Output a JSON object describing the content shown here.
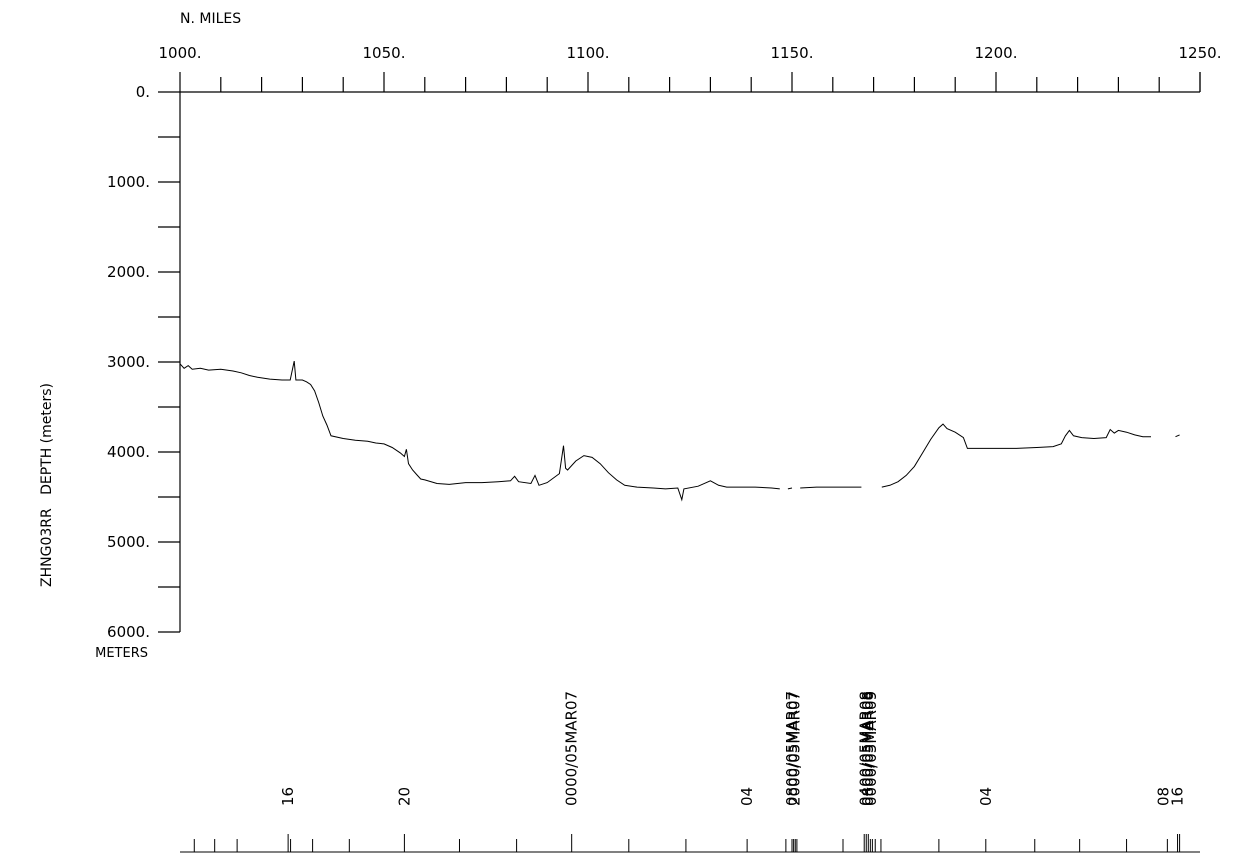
{
  "chart_data": {
    "type": "line",
    "xlabel": "N. MILES",
    "ylabel": "ZHNG03RR   DEPTH (meters)",
    "y_unit_label": "METERS",
    "xlim": [
      1000,
      1250
    ],
    "ylim": [
      0,
      6000
    ],
    "y_inverted": true,
    "grid": false,
    "x_tick_labels": [
      "1000.",
      "1050.",
      "1100.",
      "1150.",
      "1200.",
      "1250."
    ],
    "y_tick_labels": [
      "0.",
      "1000.",
      "2000.",
      "3000.",
      "4000.",
      "5000.",
      "6000."
    ],
    "series": [
      {
        "segments": [
          [
            [
              1000,
              3020
            ],
            [
              1001,
              3070
            ],
            [
              1002,
              3040
            ],
            [
              1003,
              3080
            ],
            [
              1005,
              3070
            ],
            [
              1007,
              3090
            ],
            [
              1010,
              3080
            ],
            [
              1013,
              3100
            ],
            [
              1015,
              3120
            ],
            [
              1017,
              3150
            ],
            [
              1019,
              3170
            ],
            [
              1022,
              3190
            ],
            [
              1025,
              3200
            ],
            [
              1027,
              3200
            ],
            [
              1028,
              2990
            ],
            [
              1028.4,
              3200
            ],
            [
              1030,
              3200
            ],
            [
              1031,
              3220
            ],
            [
              1032,
              3250
            ],
            [
              1033,
              3320
            ],
            [
              1034,
              3450
            ],
            [
              1035,
              3600
            ],
            [
              1036,
              3700
            ],
            [
              1037,
              3820
            ],
            [
              1040,
              3850
            ],
            [
              1043,
              3870
            ],
            [
              1046,
              3880
            ],
            [
              1048,
              3900
            ],
            [
              1050,
              3910
            ],
            [
              1052,
              3950
            ],
            [
              1054,
              4010
            ],
            [
              1055,
              4050
            ],
            [
              1055.5,
              3970
            ],
            [
              1056,
              4130
            ],
            [
              1057,
              4200
            ],
            [
              1058,
              4250
            ],
            [
              1059,
              4300
            ],
            [
              1060,
              4310
            ],
            [
              1063,
              4350
            ],
            [
              1066,
              4360
            ],
            [
              1070,
              4340
            ],
            [
              1074,
              4340
            ],
            [
              1078,
              4330
            ],
            [
              1081,
              4320
            ],
            [
              1082,
              4270
            ],
            [
              1083,
              4330
            ],
            [
              1086,
              4350
            ],
            [
              1087,
              4260
            ],
            [
              1088,
              4370
            ],
            [
              1090,
              4340
            ],
            [
              1093,
              4240
            ],
            [
              1094,
              3930
            ],
            [
              1094.5,
              4180
            ],
            [
              1095,
              4200
            ],
            [
              1097,
              4100
            ],
            [
              1099,
              4040
            ],
            [
              1101,
              4060
            ],
            [
              1103,
              4130
            ],
            [
              1105,
              4230
            ],
            [
              1107,
              4310
            ],
            [
              1109,
              4370
            ],
            [
              1112,
              4390
            ],
            [
              1116,
              4400
            ],
            [
              1119,
              4410
            ],
            [
              1122,
              4400
            ],
            [
              1123,
              4530
            ],
            [
              1123.5,
              4410
            ],
            [
              1127,
              4380
            ],
            [
              1130,
              4320
            ],
            [
              1132,
              4370
            ],
            [
              1134,
              4390
            ],
            [
              1137,
              4390
            ],
            [
              1141,
              4390
            ],
            [
              1145,
              4400
            ],
            [
              1147,
              4410
            ]
          ],
          [
            [
              1149,
              4410
            ],
            [
              1150,
              4400
            ]
          ],
          [
            [
              1152,
              4400
            ],
            [
              1156,
              4390
            ],
            [
              1160,
              4390
            ],
            [
              1164,
              4390
            ],
            [
              1167,
              4390
            ]
          ],
          [
            [
              1172,
              4390
            ],
            [
              1174,
              4370
            ],
            [
              1176,
              4330
            ],
            [
              1178,
              4260
            ],
            [
              1180,
              4160
            ],
            [
              1182,
              4010
            ],
            [
              1184,
              3860
            ],
            [
              1186,
              3730
            ],
            [
              1187,
              3690
            ],
            [
              1188,
              3740
            ],
            [
              1190,
              3780
            ],
            [
              1192,
              3840
            ],
            [
              1193,
              3960
            ],
            [
              1196,
              3960
            ],
            [
              1200,
              3960
            ],
            [
              1205,
              3960
            ],
            [
              1210,
              3950
            ],
            [
              1214,
              3940
            ],
            [
              1216,
              3910
            ],
            [
              1217,
              3820
            ],
            [
              1218,
              3760
            ],
            [
              1219,
              3820
            ],
            [
              1221,
              3840
            ],
            [
              1224,
              3850
            ],
            [
              1227,
              3840
            ],
            [
              1228,
              3750
            ],
            [
              1229,
              3790
            ],
            [
              1230,
              3760
            ],
            [
              1232,
              3780
            ],
            [
              1234,
              3810
            ],
            [
              1236,
              3830
            ],
            [
              1238,
              3830
            ]
          ],
          [
            [
              1244,
              3830
            ],
            [
              1245,
              3810
            ]
          ]
        ]
      }
    ],
    "timeline": {
      "labels": [
        {
          "x": 1026.5,
          "text": "16"
        },
        {
          "x": 1055,
          "text": "20"
        },
        {
          "x": 1096,
          "text": "0000/05MAR07"
        },
        {
          "x": 1139,
          "text": "04"
        },
        {
          "x": 1150,
          "text": "0800/05MAR07"
        },
        {
          "x": 1150.6,
          "text": "2000/05MAR07"
        },
        {
          "x": 1168,
          "text": "0400/05MAR08"
        },
        {
          "x": 1168.6,
          "text": "0800/05MAR08"
        },
        {
          "x": 1169.4,
          "text": "0000/05MAR09"
        },
        {
          "x": 1197.5,
          "text": "04"
        },
        {
          "x": 1241,
          "text": "08"
        },
        {
          "x": 1244.5,
          "text": "16"
        }
      ],
      "ticks": [
        {
          "x": 1003.5,
          "major": false
        },
        {
          "x": 1008.5,
          "major": false
        },
        {
          "x": 1014,
          "major": false
        },
        {
          "x": 1026.5,
          "major": true
        },
        {
          "x": 1027.1,
          "major": false
        },
        {
          "x": 1032.5,
          "major": false
        },
        {
          "x": 1041.5,
          "major": false
        },
        {
          "x": 1055,
          "major": true
        },
        {
          "x": 1068.5,
          "major": false
        },
        {
          "x": 1082.5,
          "major": false
        },
        {
          "x": 1096,
          "major": true
        },
        {
          "x": 1110,
          "major": false
        },
        {
          "x": 1124,
          "major": false
        },
        {
          "x": 1139,
          "major": false
        },
        {
          "x": 1148.5,
          "major": false
        },
        {
          "x": 1150,
          "major": false
        },
        {
          "x": 1150.4,
          "major": false
        },
        {
          "x": 1150.8,
          "major": false
        },
        {
          "x": 1151.2,
          "major": false
        },
        {
          "x": 1162.5,
          "major": false
        },
        {
          "x": 1167.7,
          "major": true
        },
        {
          "x": 1168.2,
          "major": true
        },
        {
          "x": 1168.7,
          "major": true
        },
        {
          "x": 1169.2,
          "major": false
        },
        {
          "x": 1169.7,
          "major": false
        },
        {
          "x": 1170.4,
          "major": false
        },
        {
          "x": 1171.8,
          "major": false
        },
        {
          "x": 1186,
          "major": false
        },
        {
          "x": 1197.5,
          "major": false
        },
        {
          "x": 1209.5,
          "major": false
        },
        {
          "x": 1220.5,
          "major": false
        },
        {
          "x": 1232,
          "major": false
        },
        {
          "x": 1242,
          "major": false
        },
        {
          "x": 1244.5,
          "major": true
        },
        {
          "x": 1245,
          "major": true
        }
      ]
    }
  }
}
